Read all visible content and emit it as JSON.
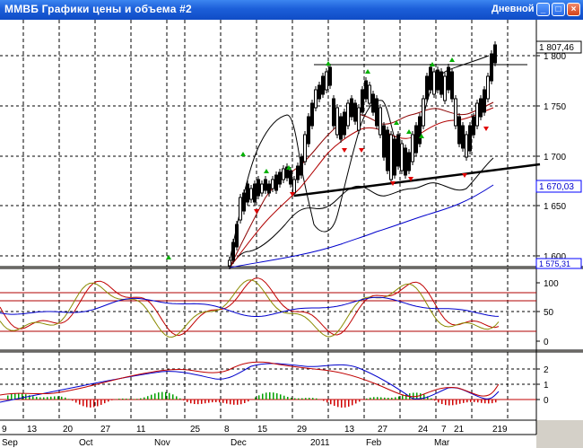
{
  "window": {
    "title": "ММВБ Графики цены и объема #2",
    "mode": "Дневной"
  },
  "price_panel": {
    "last_price_label": "1 807,46",
    "y_ticks": [
      "1 800",
      "1 750",
      "1 700",
      "1 650",
      "1 600"
    ],
    "marker_labels": [
      "1 670,03",
      "1 575,31"
    ]
  },
  "oscillator_panel": {
    "y_ticks": [
      "100",
      "50",
      "0"
    ]
  },
  "macd_panel": {
    "y_ticks": [
      "2",
      "1",
      "0"
    ]
  },
  "x_axis": {
    "day_labels": [
      "9",
      "13",
      "20",
      "27",
      "11",
      "25",
      "8",
      "15",
      "29",
      "13",
      "27",
      "24",
      "7",
      "21",
      "21",
      "9"
    ],
    "month_labels": [
      "Sep",
      "Oct",
      "Nov",
      "Dec",
      "2011",
      "Feb",
      "Mar"
    ]
  },
  "colors": {
    "title_bar": "#1c5fd9",
    "candle": "#000000",
    "up_marker": "#00b000",
    "down_marker": "#e00000"
  }
}
